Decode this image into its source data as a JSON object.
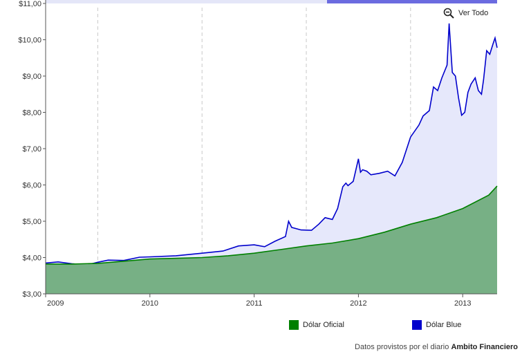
{
  "chart_data": {
    "type": "area",
    "ylim": [
      3,
      11
    ],
    "y_ticks": [
      "$3,00",
      "$4,00",
      "$5,00",
      "$6,00",
      "$7,00",
      "$8,00",
      "$9,00",
      "$10,00",
      "$11,00"
    ],
    "x_ticks": [
      "2009",
      "2010",
      "2011",
      "2012",
      "2013"
    ],
    "grid": "vertical dashed at mid-year",
    "series": [
      {
        "name": "Dólar Oficial",
        "color": "#008000",
        "fill": "#77b085",
        "x": [
          2009.0,
          2009.25,
          2009.5,
          2009.75,
          2010.0,
          2010.25,
          2010.5,
          2010.75,
          2011.0,
          2011.25,
          2011.5,
          2011.75,
          2012.0,
          2012.25,
          2012.5,
          2012.75,
          2013.0,
          2013.25,
          2013.33
        ],
        "values": [
          3.82,
          3.82,
          3.84,
          3.9,
          3.96,
          3.98,
          4.0,
          4.05,
          4.12,
          4.22,
          4.32,
          4.4,
          4.52,
          4.7,
          4.92,
          5.1,
          5.35,
          5.72,
          5.97
        ]
      },
      {
        "name": "Dólar Blue",
        "color": "#0000cc",
        "fill": "#e6e8fb",
        "x": [
          2009.0,
          2009.12,
          2009.25,
          2009.4,
          2009.5,
          2009.6,
          2009.75,
          2009.9,
          2010.0,
          2010.25,
          2010.5,
          2010.7,
          2010.85,
          2011.0,
          2011.1,
          2011.2,
          2011.3,
          2011.33,
          2011.36,
          2011.45,
          2011.55,
          2011.62,
          2011.68,
          2011.75,
          2011.8,
          2011.85,
          2011.88,
          2011.9,
          2011.95,
          2012.0,
          2012.02,
          2012.04,
          2012.08,
          2012.12,
          2012.2,
          2012.28,
          2012.35,
          2012.42,
          2012.5,
          2012.58,
          2012.62,
          2012.68,
          2012.72,
          2012.76,
          2012.8,
          2012.85,
          2012.87,
          2012.9,
          2012.93,
          2012.96,
          2012.99,
          2013.02,
          2013.05,
          2013.08,
          2013.12,
          2013.15,
          2013.18,
          2013.2,
          2013.23,
          2013.26,
          2013.29,
          2013.31,
          2013.33
        ],
        "values": [
          3.85,
          3.88,
          3.83,
          3.8,
          3.87,
          3.93,
          3.92,
          4.01,
          4.02,
          4.05,
          4.12,
          4.18,
          4.32,
          4.35,
          4.3,
          4.45,
          4.58,
          5.0,
          4.83,
          4.76,
          4.75,
          4.92,
          5.1,
          5.05,
          5.35,
          5.95,
          6.05,
          5.98,
          6.1,
          6.72,
          6.35,
          6.42,
          6.38,
          6.28,
          6.32,
          6.38,
          6.25,
          6.62,
          7.32,
          7.65,
          7.9,
          8.05,
          8.7,
          8.6,
          8.95,
          9.3,
          10.45,
          9.1,
          9.0,
          8.4,
          7.92,
          8.0,
          8.55,
          8.78,
          8.95,
          8.6,
          8.5,
          8.9,
          9.7,
          9.6,
          9.88,
          10.05,
          9.78
        ]
      }
    ]
  },
  "ui": {
    "zoom_label": "Ver Todo",
    "zoom_icon": "zoom-out-icon",
    "source_prefix": "Datos provistos por el diario",
    "source_name": "Ambito Financiero"
  }
}
